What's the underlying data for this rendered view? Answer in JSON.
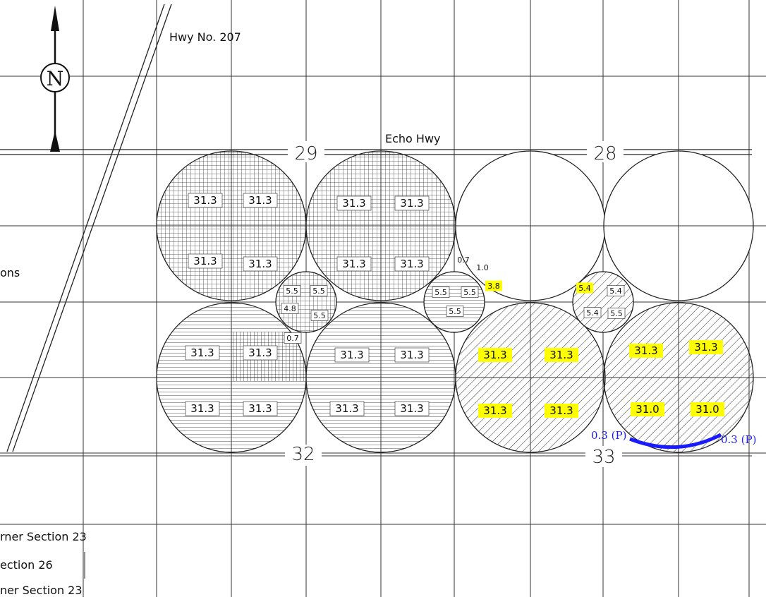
{
  "roads": {
    "highway_207": "Hwy No. 207",
    "echo_hwy": "Echo Hwy"
  },
  "north_arrow": {
    "letter": "N",
    "icon": "north-arrow-icon"
  },
  "sections": {
    "s29": "29",
    "s28": "28",
    "s32": "32",
    "s33": "33"
  },
  "left_labels": {
    "partial_top": "ons",
    "line1": "rner Section 23",
    "line2": "ection 26",
    "line3": "ner Section 23"
  },
  "large_values": {
    "A": [
      "31.3",
      "31.3",
      "31.3",
      "31.3"
    ],
    "B": [
      "31.3",
      "31.3",
      "31.3",
      "31.3"
    ],
    "C": [
      "31.3",
      "31.3",
      "31.3",
      "31.3"
    ],
    "D": [
      "31.3",
      "31.3",
      "31.3",
      "31.3"
    ],
    "E": [
      "31.3",
      "31.3",
      "31.3",
      "31.3"
    ],
    "F": [
      "31.3",
      "31.3",
      "31.0",
      "31.0"
    ]
  },
  "small_values": {
    "s1": [
      "5.5",
      "5.5",
      "4.8",
      "5.5",
      "0.7"
    ],
    "s2": [
      "5.5",
      "5.5",
      "5.5",
      "0.7",
      "1.0",
      "3.8"
    ],
    "s3": [
      "5.4",
      "5.4",
      "5.4",
      "5.5"
    ]
  },
  "annotations": {
    "left": "0.3 (P)",
    "right": "0.3 (P)"
  },
  "colors": {
    "highlight": "#ffff00",
    "annotation": "#1a1aff",
    "line": "#222222"
  }
}
